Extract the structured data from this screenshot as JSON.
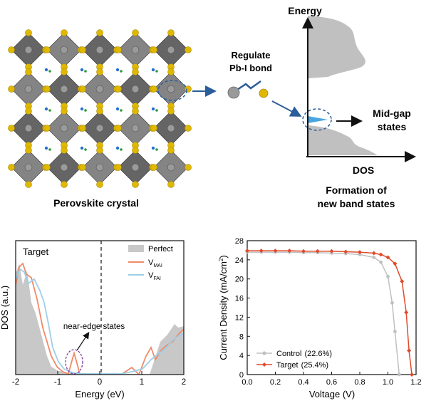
{
  "top": {
    "crystal_caption": "Perovskite crystal",
    "regulate_label_line1": "Regulate",
    "regulate_label_line2": "Pb-I bond",
    "energy_label": "Energy",
    "dos_label": "DOS",
    "midgap_line1": "Mid-gap",
    "midgap_line2": "states",
    "formation_line1": "Formation of",
    "formation_line2": "new band states"
  },
  "colors": {
    "octahedron": "#6e6e6e",
    "octahedron_dark": "#4a4a4a",
    "iodide": "#e0b800",
    "lead": "#9a9a9a",
    "arrow_blue": "#2a5d9a",
    "midgap_fill": "#4aa6e0",
    "perfect_fill": "#c8c8c8",
    "vmai": "#f08a6a",
    "vfai": "#9ccfea",
    "control": "#c0c0c0",
    "target": "#e04a2a"
  },
  "dos_panel": {
    "title": "Target",
    "ylabel": "DOS (a.u.)",
    "xlabel": "Energy (eV)",
    "xticks": [
      "-2",
      "-1",
      "0",
      "1",
      "2"
    ],
    "annotation": "near-edge states",
    "legend": [
      {
        "name": "Perfect",
        "sub": ""
      },
      {
        "name": "V",
        "sub": "MAI"
      },
      {
        "name": "V",
        "sub": "FAI"
      }
    ]
  },
  "chart_data": {
    "type": "line",
    "xlabel": "Voltage (V)",
    "ylabel": "Current Density (mA/cm2)",
    "xlim": [
      0.0,
      1.2
    ],
    "ylim": [
      0,
      28
    ],
    "xticks": [
      "0.0",
      "0.2",
      "0.4",
      "0.6",
      "0.8",
      "1.0",
      "1.2"
    ],
    "yticks": [
      "0",
      "4",
      "8",
      "12",
      "16",
      "20",
      "24",
      "28"
    ],
    "legend_position": "bottom-left",
    "series": [
      {
        "name": "Control",
        "pce": "(22.6%)",
        "color": "#c0c0c0",
        "x": [
          0.0,
          0.1,
          0.2,
          0.3,
          0.4,
          0.5,
          0.6,
          0.7,
          0.8,
          0.9,
          0.95,
          1.0,
          1.03,
          1.05,
          1.08
        ],
        "y": [
          25.6,
          25.6,
          25.6,
          25.6,
          25.5,
          25.5,
          25.4,
          25.3,
          25.1,
          24.5,
          23.5,
          20.5,
          15.0,
          9.0,
          0.0
        ]
      },
      {
        "name": "Target",
        "pce": "(25.4%)",
        "color": "#e04a2a",
        "x": [
          0.0,
          0.1,
          0.2,
          0.3,
          0.4,
          0.5,
          0.6,
          0.7,
          0.8,
          0.9,
          0.95,
          1.0,
          1.05,
          1.1,
          1.13,
          1.15,
          1.17
        ],
        "y": [
          25.9,
          25.9,
          25.9,
          25.9,
          25.8,
          25.8,
          25.8,
          25.7,
          25.6,
          25.4,
          25.1,
          24.5,
          23.2,
          19.5,
          13.0,
          5.0,
          0.0
        ]
      }
    ]
  }
}
